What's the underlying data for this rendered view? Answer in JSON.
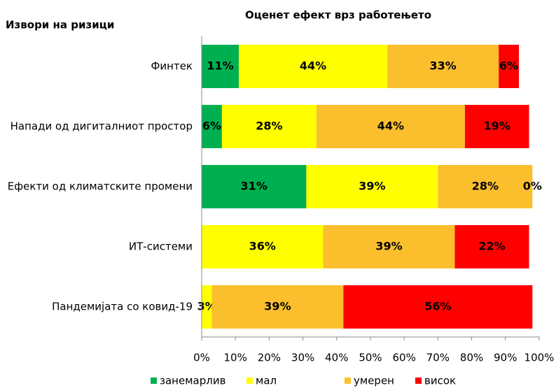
{
  "chart_data": {
    "type": "stacked-bar-horizontal",
    "title": "Оценет ефект врз работењето",
    "subtitle": "Извори на ризици",
    "categories": [
      "Финтек",
      "Напади од дигиталниот простор",
      "Ефекти од климатските промени",
      "ИТ-системи",
      "Пандемијата со ковид-19"
    ],
    "series": [
      {
        "name": "занемарлив",
        "color": "#00b050",
        "label_color": "#ffffff",
        "values": [
          11,
          6,
          31,
          0,
          0
        ],
        "value_labels": [
          "11%",
          "6%",
          "31%",
          null,
          null
        ]
      },
      {
        "name": "мал",
        "color": "#ffff00",
        "label_color": "#f7b733",
        "values": [
          44,
          28,
          39,
          36,
          3
        ],
        "value_labels": [
          "44%",
          "28%",
          "39%",
          "36%",
          "3%"
        ]
      },
      {
        "name": "умерен",
        "color": "#fbbf2e",
        "label_color": "#b8621b",
        "values": [
          33,
          44,
          28,
          39,
          39
        ],
        "value_labels": [
          "33%",
          "44%",
          "28%",
          "39%",
          "39%"
        ]
      },
      {
        "name": "висок",
        "color": "#ff0000",
        "label_color": "#ffffff",
        "values": [
          6,
          19,
          0,
          22,
          56
        ],
        "value_labels": [
          "6%",
          "19%",
          "0%",
          "22%",
          "56%"
        ]
      }
    ],
    "xlim": [
      0,
      100
    ],
    "xticks": [
      {
        "value": 0,
        "label": "0%"
      },
      {
        "value": 10,
        "label": "10%"
      },
      {
        "value": 20,
        "label": "20%"
      },
      {
        "value": 30,
        "label": "30%"
      },
      {
        "value": 40,
        "label": "40%"
      },
      {
        "value": 50,
        "label": "50%"
      },
      {
        "value": 60,
        "label": "60%"
      },
      {
        "value": 70,
        "label": "70%"
      },
      {
        "value": 80,
        "label": "80%"
      },
      {
        "value": 90,
        "label": "90%"
      },
      {
        "value": 100,
        "label": "100%"
      }
    ]
  }
}
